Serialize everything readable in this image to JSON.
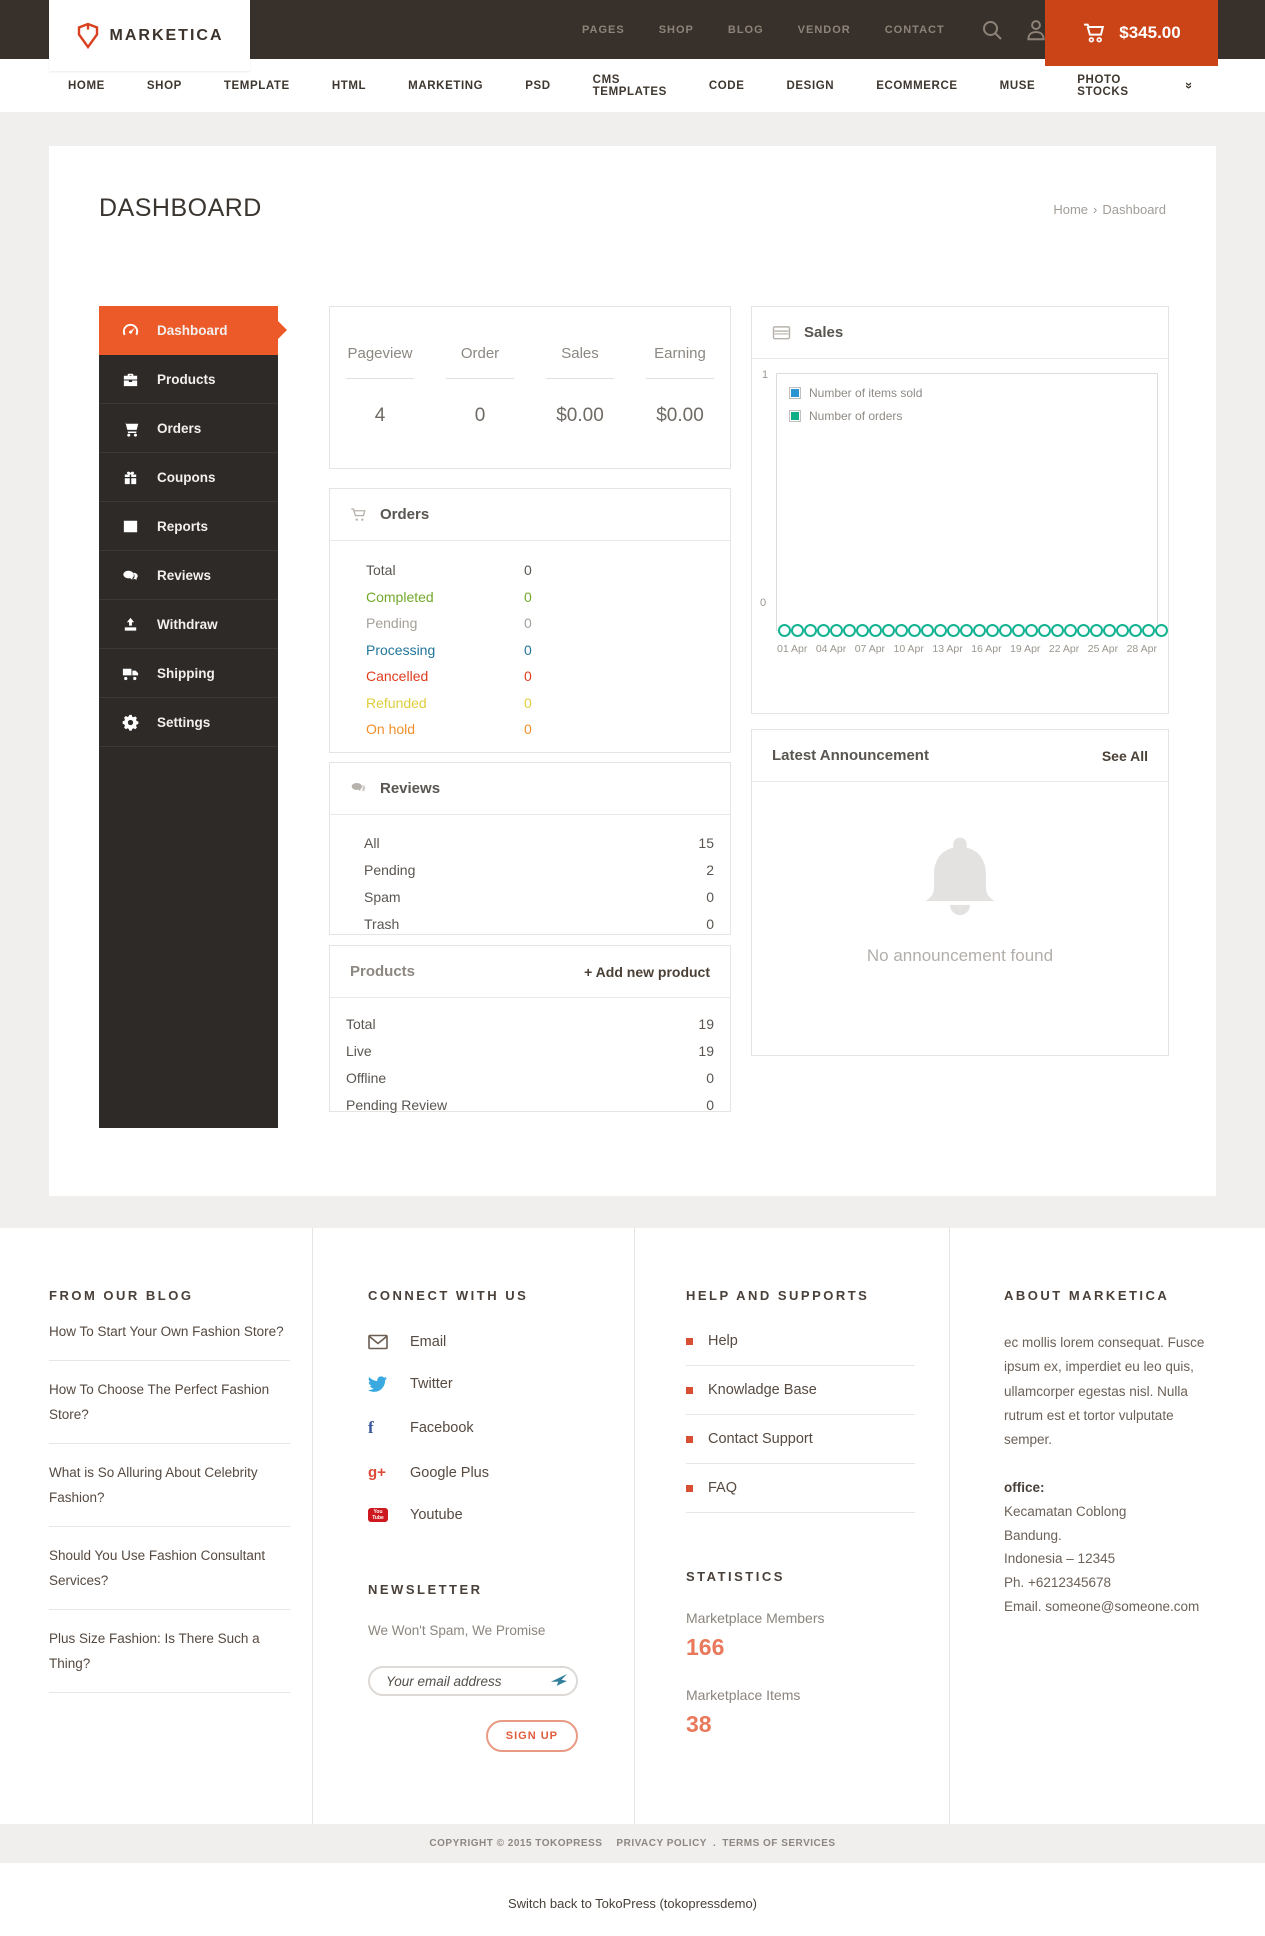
{
  "header": {
    "brand": "MARKETICA",
    "nav": [
      "PAGES",
      "SHOP",
      "BLOG",
      "VENDOR",
      "CONTACT"
    ],
    "cart_total": "$345.00"
  },
  "mainnav": {
    "items": [
      "HOME",
      "SHOP",
      "TEMPLATE",
      "HTML",
      "MARKETING",
      "PSD",
      "CMS TEMPLATES",
      "CODE",
      "DESIGN",
      "ECOMMERCE",
      "MUSE",
      "PHOTO STOCKS"
    ],
    "chevron": "»"
  },
  "page": {
    "title": "DASHBOARD",
    "breadcrumb": {
      "home": "Home",
      "sep": "›",
      "current": "Dashboard"
    }
  },
  "sidebar": {
    "items": [
      {
        "label": "Dashboard"
      },
      {
        "label": "Products"
      },
      {
        "label": "Orders"
      },
      {
        "label": "Coupons"
      },
      {
        "label": "Reports"
      },
      {
        "label": "Reviews"
      },
      {
        "label": "Withdraw"
      },
      {
        "label": "Shipping"
      },
      {
        "label": "Settings"
      }
    ]
  },
  "stats": {
    "columns": [
      {
        "label": "Pageview",
        "value": "4"
      },
      {
        "label": "Order",
        "value": "0"
      },
      {
        "label": "Sales",
        "value": "$0.00"
      },
      {
        "label": "Earning",
        "value": "$0.00"
      }
    ]
  },
  "orders_panel": {
    "title": "Orders",
    "rows": [
      {
        "label": "Total",
        "value": "0",
        "color": "#5a5550"
      },
      {
        "label": "Completed",
        "value": "0",
        "color": "#72a92a"
      },
      {
        "label": "Pending",
        "value": "0",
        "color": "#a5a09a"
      },
      {
        "label": "Processing",
        "value": "0",
        "color": "#21759b"
      },
      {
        "label": "Cancelled",
        "value": "0",
        "color": "#df3c1d"
      },
      {
        "label": "Refunded",
        "value": "0",
        "color": "#e0cd3a"
      },
      {
        "label": "On hold",
        "value": "0",
        "color": "#f18f2b"
      }
    ]
  },
  "reviews_panel": {
    "title": "Reviews",
    "rows": [
      {
        "label": "All",
        "value": "15"
      },
      {
        "label": "Pending",
        "value": "2"
      },
      {
        "label": "Spam",
        "value": "0"
      },
      {
        "label": "Trash",
        "value": "0"
      }
    ]
  },
  "products_panel": {
    "title": "Products",
    "action": "+ Add new product",
    "rows": [
      {
        "label": "Total",
        "value": "19"
      },
      {
        "label": "Live",
        "value": "19"
      },
      {
        "label": "Offline",
        "value": "0"
      },
      {
        "label": "Pending Review",
        "value": "0"
      }
    ]
  },
  "sales_panel": {
    "title": "Sales"
  },
  "chart_data": {
    "type": "line",
    "title": "Sales",
    "x": [
      "01 Apr",
      "02 Apr",
      "03 Apr",
      "04 Apr",
      "05 Apr",
      "06 Apr",
      "07 Apr",
      "08 Apr",
      "09 Apr",
      "10 Apr",
      "11 Apr",
      "12 Apr",
      "13 Apr",
      "14 Apr",
      "15 Apr",
      "16 Apr",
      "17 Apr",
      "18 Apr",
      "19 Apr",
      "20 Apr",
      "21 Apr",
      "22 Apr",
      "23 Apr",
      "24 Apr",
      "25 Apr",
      "26 Apr",
      "27 Apr",
      "28 Apr",
      "29 Apr",
      "30 Apr"
    ],
    "x_tick_labels": [
      "01 Apr",
      "04 Apr",
      "07 Apr",
      "10 Apr",
      "13 Apr",
      "16 Apr",
      "19 Apr",
      "22 Apr",
      "25 Apr",
      "28 Apr"
    ],
    "series": [
      {
        "name": "Number of items sold",
        "color": "#2b95d4",
        "values": [
          0,
          0,
          0,
          0,
          0,
          0,
          0,
          0,
          0,
          0,
          0,
          0,
          0,
          0,
          0,
          0,
          0,
          0,
          0,
          0,
          0,
          0,
          0,
          0,
          0,
          0,
          0,
          0,
          0,
          0
        ]
      },
      {
        "name": "Number of orders",
        "color": "#10ae87",
        "values": [
          0,
          0,
          0,
          0,
          0,
          0,
          0,
          0,
          0,
          0,
          0,
          0,
          0,
          0,
          0,
          0,
          0,
          0,
          0,
          0,
          0,
          0,
          0,
          0,
          0,
          0,
          0,
          0,
          0,
          0
        ]
      }
    ],
    "ylim": [
      0,
      1
    ],
    "y_ticks": [
      0,
      1
    ],
    "legend_position": "top-left",
    "grid": false
  },
  "announcement_panel": {
    "title": "Latest Announcement",
    "action": "See All",
    "empty_message": "No announcement found"
  },
  "footer": {
    "blog": {
      "title": "FROM OUR BLOG",
      "links": [
        "How To Start Your Own Fashion Store?",
        "How To Choose The Perfect Fashion Store?",
        "What is So Alluring About Celebrity Fashion?",
        "Should You Use Fashion Consultant Services?",
        "Plus Size Fashion: Is There Such a Thing?"
      ]
    },
    "connect": {
      "title": "CONNECT WITH US",
      "items": [
        {
          "label": "Email"
        },
        {
          "label": "Twitter"
        },
        {
          "label": "Facebook"
        },
        {
          "label": "Google Plus"
        },
        {
          "label": "Youtube"
        }
      ]
    },
    "newsletter": {
      "title": "NEWSLETTER",
      "note": "We Won't Spam, We Promise",
      "placeholder": "Your email address",
      "button": "SIGN UP"
    },
    "help": {
      "title": "HELP AND SUPPORTS",
      "links": [
        "Help",
        "Knowladge Base",
        "Contact Support",
        "FAQ"
      ]
    },
    "statistics": {
      "title": "STATISTICS",
      "items": [
        {
          "label": "Marketplace Members",
          "value": "166"
        },
        {
          "label": "Marketplace Items",
          "value": "38"
        }
      ]
    },
    "about": {
      "title": "ABOUT MARKETICA",
      "text": "ec mollis lorem consequat. Fusce ipsum ex, imperdiet eu leo quis, ullamcorper egestas nisl. Nulla rutrum est et tortor vulputate semper.",
      "office_title": "office:",
      "office_lines": [
        "Kecamatan Coblong",
        "Bandung.",
        "Indonesia – 12345",
        "Ph. +6212345678",
        "Email. someone@someone.com"
      ]
    }
  },
  "copyright": {
    "text": "COPYRIGHT © 2015 TOKOPRESS",
    "privacy": "PRIVACY POLICY",
    "sep": ".",
    "terms": "TERMS OF SERVICES"
  },
  "adminbar": {
    "link": "Switch back to TokoPress (tokopressdemo)"
  },
  "colors": {
    "header_dark": "#38302a",
    "accent_orange": "#eb5a28",
    "cart_red": "#cb4417",
    "logo_red": "#d9411e",
    "status_completed": "#72a92a",
    "status_pending": "#a5a09a",
    "status_processing": "#21759b",
    "status_cancelled": "#df3c1d",
    "status_refunded": "#e0cd3a",
    "status_onhold": "#f18f2b",
    "legend_items_sold": "#2b95d4",
    "legend_orders": "#10ae87",
    "chart_point_ring": "#14b392",
    "stat_number": "#e8795b"
  }
}
